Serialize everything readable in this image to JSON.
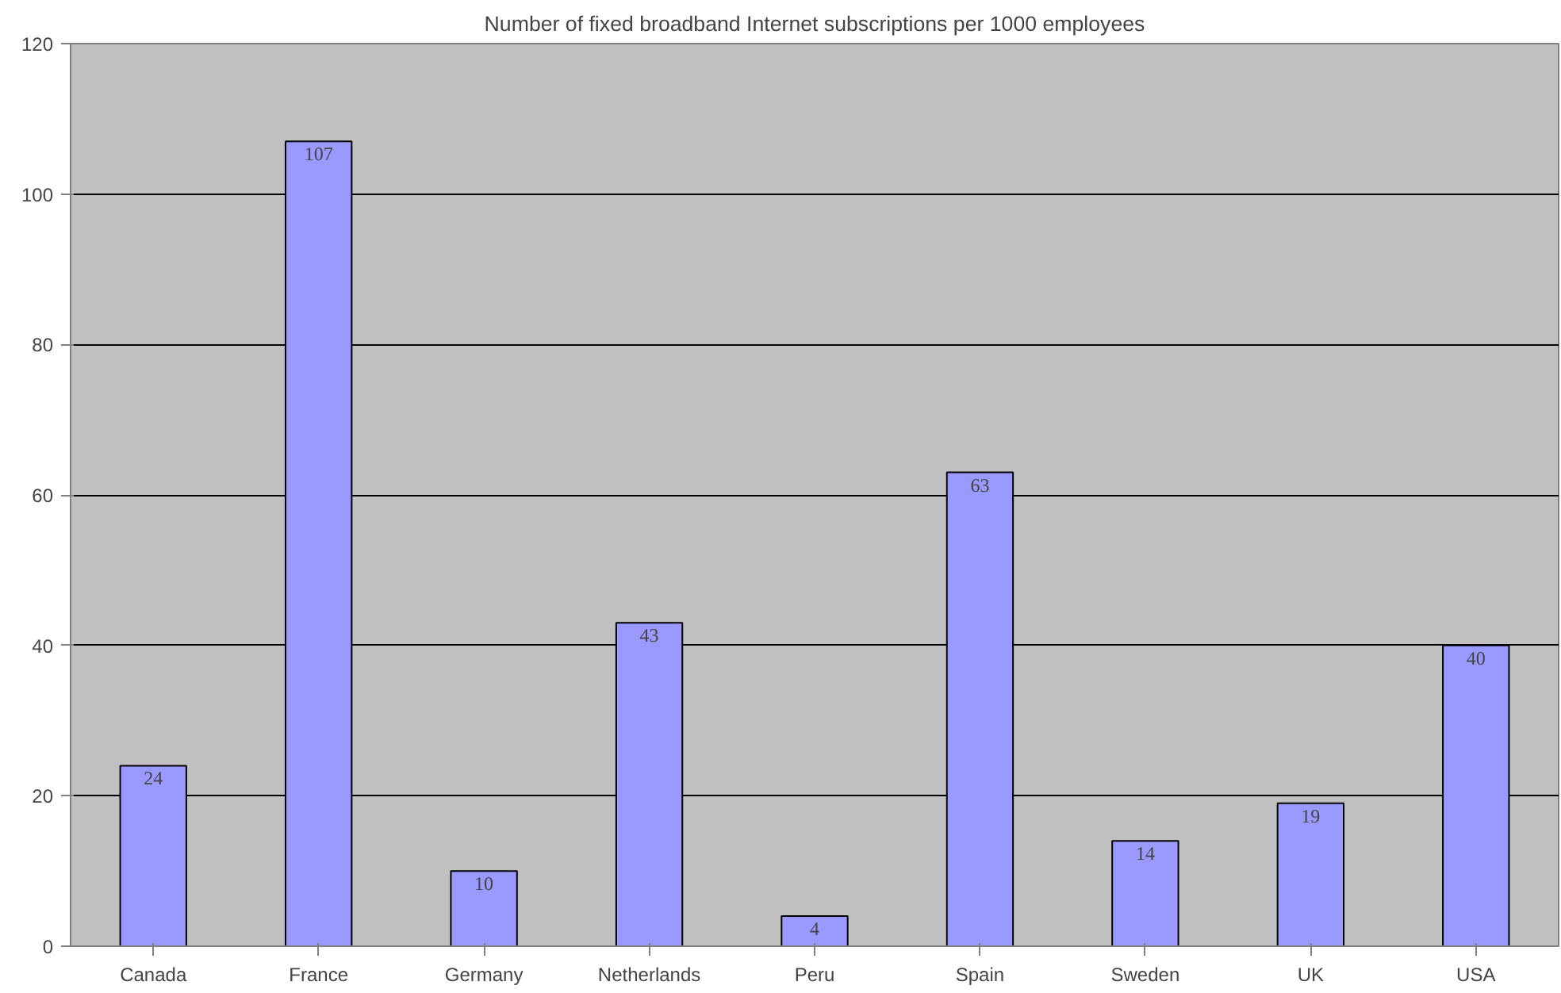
{
  "chart_data": {
    "type": "bar",
    "title": "Number of fixed broadband Internet subscriptions per 1000 employees",
    "categories": [
      "Canada",
      "France",
      "Germany",
      "Netherlands",
      "Peru",
      "Spain",
      "Sweden",
      "UK",
      "USA"
    ],
    "values": [
      24,
      107,
      10,
      43,
      4,
      63,
      14,
      19,
      40
    ],
    "color": "#9999ff",
    "ylim": [
      0,
      120
    ],
    "yticks": [
      0,
      20,
      40,
      60,
      80,
      100,
      120
    ],
    "grid": "y",
    "data_labels": true
  }
}
